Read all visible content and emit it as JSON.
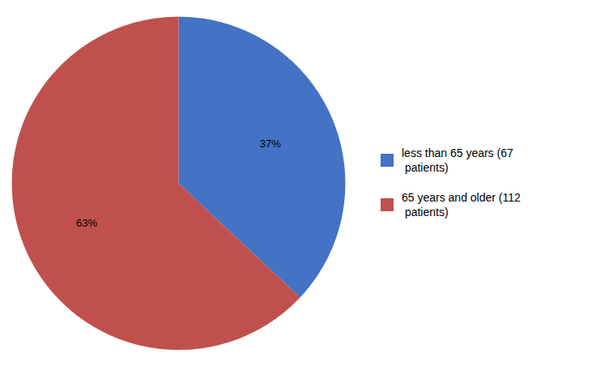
{
  "chart_data": {
    "type": "pie",
    "categories": [
      "less than 65 years (67\n patients)",
      "65 years and older (112\n patients)"
    ],
    "values": [
      37,
      63
    ],
    "value_labels": [
      "37%",
      "63%"
    ],
    "colors": [
      "#4472C4",
      "#C0504D"
    ],
    "data_labels": true,
    "legend": "right"
  }
}
